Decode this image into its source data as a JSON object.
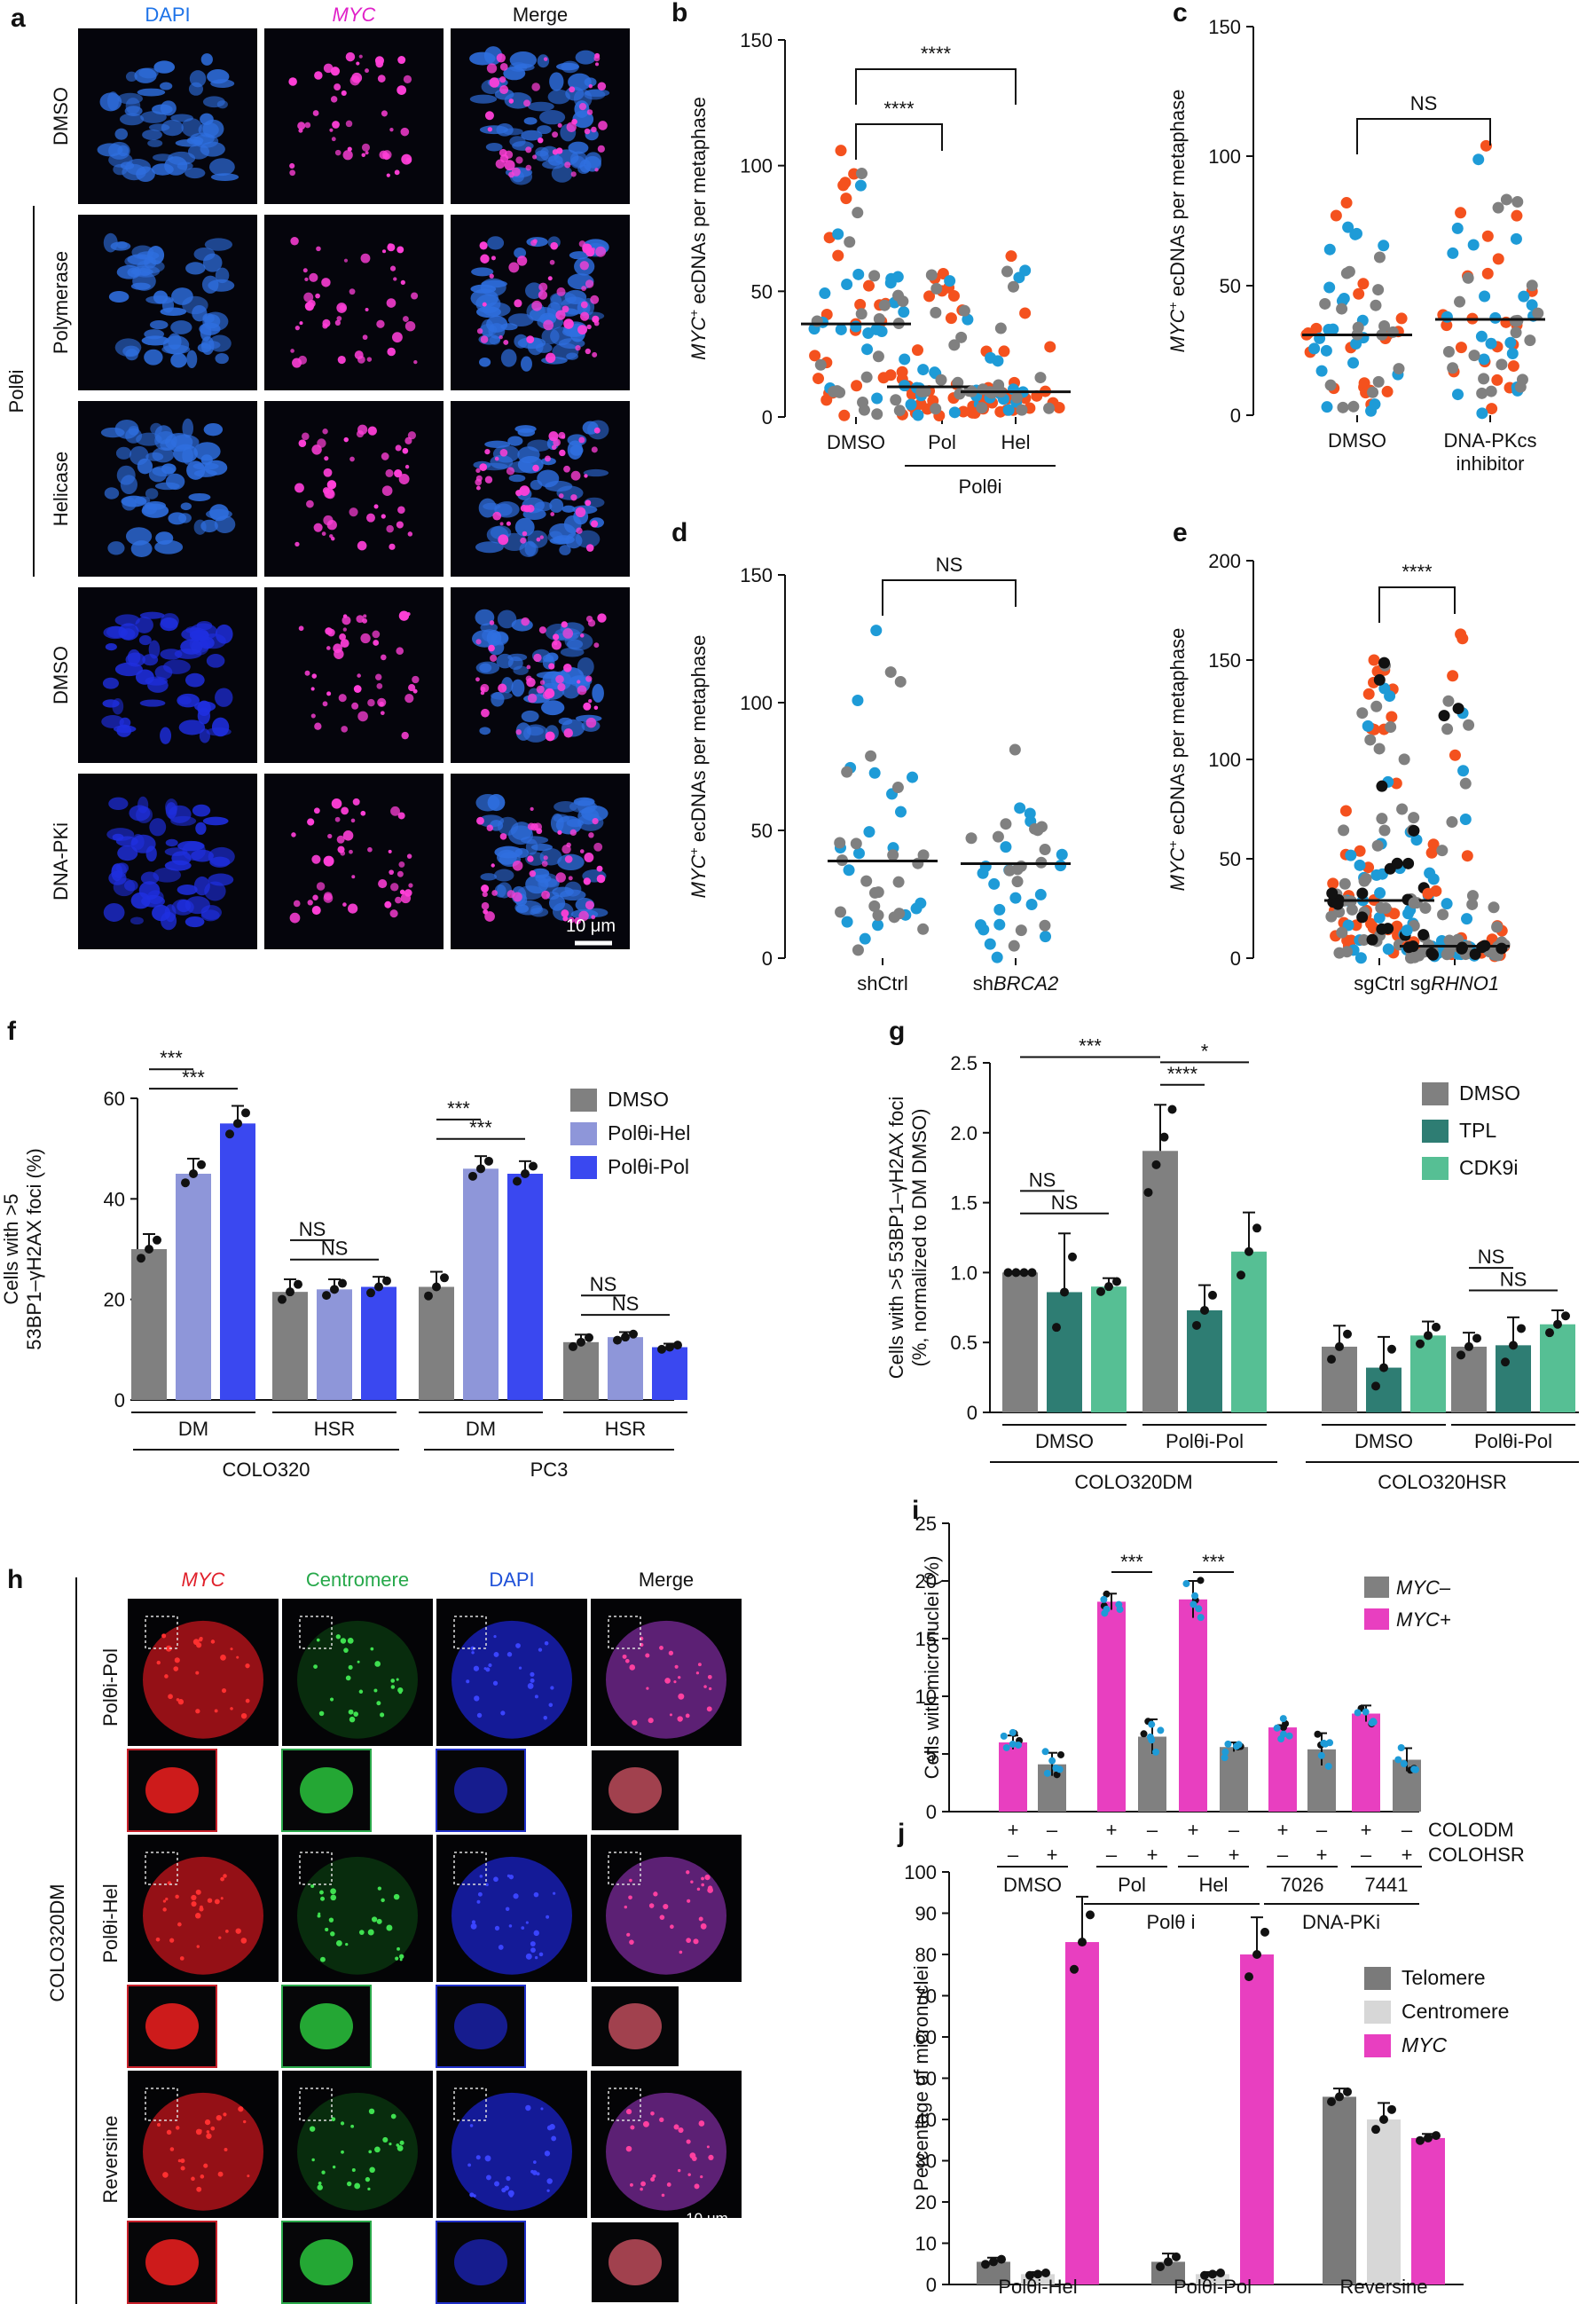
{
  "colors": {
    "orange": "#f4511e",
    "blue": "#1e9bd7",
    "gray": "#808080",
    "black": "#111111",
    "lavender": "#8e96d9",
    "royal": "#3a48f0",
    "teal": "#2e7d73",
    "mint": "#56bf94",
    "magenta": "#e83fc0",
    "darkgray": "#7a7a7a",
    "lightgray": "#d7d7d7"
  },
  "micrographs": {
    "a": {
      "letter": "a",
      "columns": [
        "DAPI",
        "MYC",
        "Merge"
      ],
      "rows": [
        "DMSO",
        "Polymerase",
        "Helicase",
        "DMSO",
        "DNA-PKi"
      ],
      "group_label": "Polθi",
      "scale_bar": "10 μm"
    },
    "h": {
      "letter": "h",
      "columns": [
        "MYC",
        "Centromere",
        "DAPI",
        "Merge"
      ],
      "rows": [
        "Polθi-Pol",
        "Polθi-Hel",
        "Reversine"
      ],
      "group_label": "COLO320DM",
      "scale_bar": "10 μm"
    }
  },
  "chart_data": [
    {
      "id": "b",
      "letter": "b",
      "type": "scatter",
      "ylabel": "ecDNAs per metaphase",
      "ylabel_prefix": "MYC",
      "ylim": [
        0,
        150
      ],
      "yticks": [
        "0",
        "50",
        "100",
        "150"
      ],
      "categories": [
        "DMSO",
        "Pol",
        "Hel"
      ],
      "group_label": "Polθi",
      "medians": [
        37,
        12,
        10
      ],
      "counts_orange": [
        26,
        28,
        26
      ],
      "counts_blue": [
        20,
        14,
        14
      ],
      "counts_gray": [
        20,
        16,
        14
      ],
      "max_values": [
        106,
        57,
        64
      ],
      "significance": [
        {
          "label": "****",
          "from": 0,
          "to": 1
        },
        {
          "label": "****",
          "from": 0,
          "to": 2
        }
      ]
    },
    {
      "id": "c",
      "letter": "c",
      "type": "scatter",
      "ylabel": "ecDNAs per metaphase",
      "ylabel_prefix": "MYC",
      "ylim": [
        0,
        150
      ],
      "yticks": [
        "0",
        "50",
        "100",
        "150"
      ],
      "categories": [
        "DMSO",
        "DNA-PKcs"
      ],
      "category_line2": [
        "",
        "inhibitor"
      ],
      "medians": [
        31,
        37
      ],
      "counts_orange": [
        20,
        22
      ],
      "counts_blue": [
        22,
        20
      ],
      "counts_gray": [
        18,
        20
      ],
      "max_values": [
        82,
        104
      ],
      "significance": [
        {
          "label": "NS",
          "from": 0,
          "to": 1
        }
      ]
    },
    {
      "id": "d",
      "letter": "d",
      "type": "scatter",
      "ylabel": "ecDNAs per metaphase",
      "ylabel_prefix": "MYC",
      "ylim": [
        0,
        150
      ],
      "yticks": [
        "0",
        "50",
        "100",
        "150"
      ],
      "categories": [
        "shCtrl",
        "shBRCA2"
      ],
      "medians": [
        38,
        37
      ],
      "counts_orange": [
        0,
        0
      ],
      "counts_blue": [
        18,
        20
      ],
      "counts_gray": [
        22,
        16
      ],
      "max_values": [
        135,
        84
      ],
      "significance": [
        {
          "label": "NS",
          "from": 0,
          "to": 1
        }
      ]
    },
    {
      "id": "e",
      "letter": "e",
      "type": "scatter",
      "ylabel": "ecDNAs per metaphase",
      "ylabel_prefix": "MYC",
      "ylim": [
        0,
        200
      ],
      "yticks": [
        "0",
        "50",
        "100",
        "150",
        "200"
      ],
      "categories": [
        "sgCtrl",
        "sgRHNO1"
      ],
      "medians": [
        29,
        6
      ],
      "counts_orange": [
        40,
        30
      ],
      "counts_blue": [
        30,
        26
      ],
      "counts_gray": [
        40,
        36
      ],
      "counts_black": [
        20,
        12
      ],
      "max_values": [
        150,
        163
      ],
      "significance": [
        {
          "label": "****",
          "from": 0,
          "to": 1
        }
      ]
    },
    {
      "id": "f",
      "letter": "f",
      "type": "bar",
      "ylabel_lines": [
        "Cells with >5",
        "53BP1–γH2AX foci (%)"
      ],
      "ylim": [
        0,
        60
      ],
      "yticks": [
        "0",
        "20",
        "40",
        "60"
      ],
      "categories": [
        "DM",
        "HSR",
        "DM",
        "HSR"
      ],
      "groups": [
        "COLO320",
        "PC3"
      ],
      "series": [
        {
          "name": "DMSO",
          "values": [
            30,
            21.5,
            22.5,
            11.5
          ],
          "errors": [
            3,
            2.5,
            3,
            1.5
          ]
        },
        {
          "name": "Polθi-Hel",
          "values": [
            45,
            22,
            46,
            12.5
          ],
          "errors": [
            3,
            2,
            2.5,
            1
          ]
        },
        {
          "name": "Polθi-Pol",
          "values": [
            55,
            22.5,
            45,
            10.5
          ],
          "errors": [
            3.5,
            2,
            2.5,
            0.7
          ]
        }
      ],
      "significance": [
        {
          "label": "***",
          "cat": 0,
          "s_from": 0,
          "s_to": 1,
          "level": 1
        },
        {
          "label": "***",
          "cat": 0,
          "s_from": 0,
          "s_to": 2,
          "level": 0
        },
        {
          "label": "NS",
          "cat": 1,
          "s_from": 0,
          "s_to": 1,
          "level": 1
        },
        {
          "label": "NS",
          "cat": 1,
          "s_from": 0,
          "s_to": 2,
          "level": 0
        },
        {
          "label": "***",
          "cat": 2,
          "s_from": 0,
          "s_to": 1,
          "level": 1
        },
        {
          "label": "***",
          "cat": 2,
          "s_from": 0,
          "s_to": 2,
          "level": 0
        },
        {
          "label": "NS",
          "cat": 3,
          "s_from": 0,
          "s_to": 1,
          "level": 1
        },
        {
          "label": "NS",
          "cat": 3,
          "s_from": 0,
          "s_to": 2,
          "level": 0
        }
      ]
    },
    {
      "id": "g",
      "letter": "g",
      "type": "bar",
      "ylabel_lines": [
        "Cells with >5 53BP1–γH2AX foci",
        "(%, normalized to DM DMSO)"
      ],
      "ylim": [
        0,
        2.5
      ],
      "yticks": [
        "0",
        "0.5",
        "1.0",
        "1.5",
        "2.0",
        "2.5"
      ],
      "categories": [
        "DMSO",
        "Polθi-Pol",
        "DMSO",
        "Polθi-Pol"
      ],
      "groups": [
        "COLO320DM",
        "COLO320HSR"
      ],
      "series": [
        {
          "name": "DMSO",
          "values": [
            1.0,
            1.87,
            0.47,
            0.47
          ],
          "errors": [
            0,
            0.33,
            0.15,
            0.1
          ]
        },
        {
          "name": "TPL",
          "values": [
            0.86,
            0.73,
            0.32,
            0.48
          ],
          "errors": [
            0.42,
            0.18,
            0.22,
            0.2
          ]
        },
        {
          "name": "CDK9i",
          "values": [
            0.9,
            1.15,
            0.55,
            0.63
          ],
          "errors": [
            0.06,
            0.28,
            0.1,
            0.1
          ]
        }
      ],
      "significance": [
        {
          "label": "***",
          "cat": 0,
          "s_from": 0,
          "cat_to": 1,
          "s_to": 0,
          "level": 2
        },
        {
          "label": "NS",
          "cat": 0,
          "s_from": 0,
          "s_to": 1,
          "level": 1
        },
        {
          "label": "NS",
          "cat": 0,
          "s_from": 0,
          "s_to": 2,
          "level": 0
        },
        {
          "label": "*",
          "cat": 1,
          "s_from": 0,
          "s_to": 2,
          "level": 1
        },
        {
          "label": "****",
          "cat": 1,
          "s_from": 0,
          "s_to": 1,
          "level": 0
        },
        {
          "label": "NS",
          "cat": 3,
          "s_from": 0,
          "s_to": 1,
          "level": 1
        },
        {
          "label": "NS",
          "cat": 3,
          "s_from": 0,
          "s_to": 2,
          "level": 0
        }
      ]
    },
    {
      "id": "i",
      "letter": "i",
      "type": "bar",
      "ylabel": "Cells with micronuclei (%)",
      "ylim": [
        0,
        25
      ],
      "yticks": [
        "0",
        "5",
        "10",
        "15",
        "20",
        "25"
      ],
      "bars": [
        {
          "series": "MYC+",
          "value": 6.0,
          "error": 0.6
        },
        {
          "series": "MYC-",
          "value": 4.1,
          "error": 1.0
        },
        {
          "series": "MYC+",
          "value": 18.2,
          "error": 0.7
        },
        {
          "series": "MYC-",
          "value": 6.5,
          "error": 1.5
        },
        {
          "series": "MYC+",
          "value": 18.4,
          "error": 1.6
        },
        {
          "series": "MYC-",
          "value": 5.6,
          "error": 0.4
        },
        {
          "series": "MYC+",
          "value": 7.3,
          "error": 0.2
        },
        {
          "series": "MYC-",
          "value": 5.4,
          "error": 1.4
        },
        {
          "series": "MYC+",
          "value": 8.5,
          "error": 0.7
        },
        {
          "series": "MYC-",
          "value": 4.5,
          "error": 1.0
        }
      ],
      "plus_minus_rows": [
        {
          "label": "COLODM",
          "marks": [
            "+",
            "–",
            "+",
            "–",
            "+",
            "–",
            "+",
            "–",
            "+",
            "–"
          ]
        },
        {
          "label": "COLOHSR",
          "marks": [
            "–",
            "+",
            "–",
            "+",
            "–",
            "+",
            "–",
            "+",
            "–",
            "+"
          ]
        }
      ],
      "group_labels": [
        "DMSO",
        "Pol",
        "Hel",
        "7026",
        "7441"
      ],
      "super_groups": [
        "Polθ i",
        "DNA-PKi"
      ],
      "legend": [
        "MYC–",
        "MYC+"
      ],
      "significance": [
        {
          "label": "***",
          "pair": 1
        },
        {
          "label": "***",
          "pair": 2
        }
      ]
    },
    {
      "id": "j",
      "letter": "j",
      "type": "bar",
      "ylabel": "Percentage of micronuclei",
      "ylim": [
        0,
        100
      ],
      "yticks": [
        "0",
        "10",
        "20",
        "30",
        "40",
        "50",
        "60",
        "70",
        "80",
        "90",
        "100"
      ],
      "categories": [
        "Polθi-Hel",
        "Polθi-Pol",
        "Reversine"
      ],
      "series": [
        {
          "name": "Telomere",
          "values": [
            5.5,
            5.5,
            45.5
          ],
          "errors": [
            1,
            2,
            2
          ]
        },
        {
          "name": "Centromere",
          "values": [
            2.5,
            2.5,
            40
          ],
          "errors": [
            0.5,
            0.5,
            4
          ]
        },
        {
          "name": "MYC",
          "values": [
            83,
            80,
            35.5
          ],
          "errors": [
            11,
            9,
            1
          ]
        }
      ]
    }
  ]
}
